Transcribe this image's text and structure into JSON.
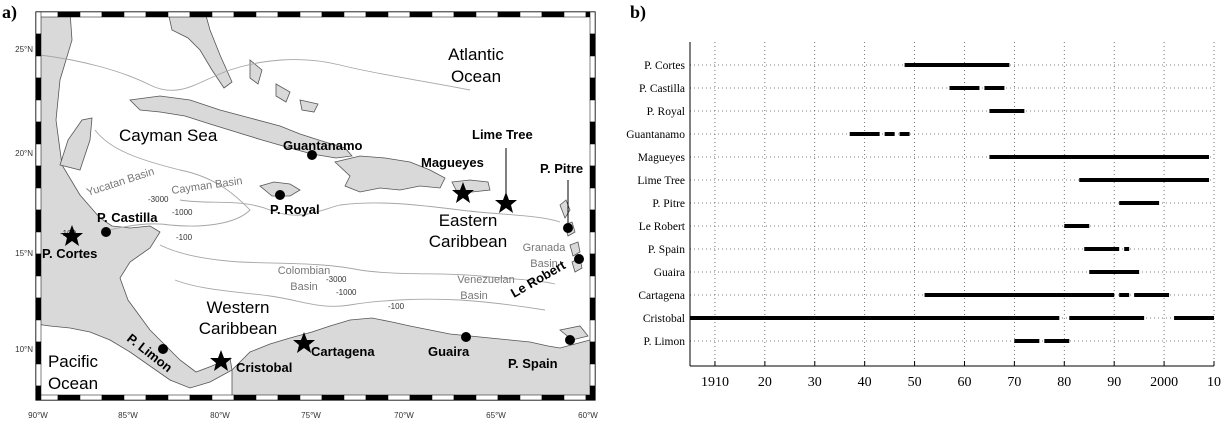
{
  "panels": {
    "a": "a)",
    "b": "b)"
  },
  "map": {
    "oceans": {
      "atlantic_1": "Atlantic",
      "atlantic_2": "Ocean",
      "pacific_1": "Pacific",
      "pacific_2": "Ocean"
    },
    "regions": {
      "cayman_sea": "Cayman Sea",
      "eastern_1": "Eastern",
      "eastern_2": "Caribbean",
      "western_1": "Western",
      "western_2": "Caribbean"
    },
    "basins": {
      "yucatan": "Yucatan Basin",
      "cayman": "Cayman Basin",
      "colombian_1": "Colombian",
      "colombian_2": "Basin",
      "venezuelan_1": "Venezuelan",
      "venezuelan_2": "Basin",
      "granada_1": "Granada",
      "granada_2": "Basin"
    },
    "contours": {
      "c3000a": "-3000",
      "c1000a": "-1000",
      "c100a": "-100",
      "c3000b": "-3000",
      "c1000b": "-1000",
      "c100b": "-100",
      "c100c": "-100"
    },
    "stations": {
      "guantanamo": "Guantanamo",
      "lime_tree": "Lime Tree",
      "magueyes": "Magueyes",
      "p_pitre": "P. Pitre",
      "p_castilla": "P. Castilla",
      "p_royal": "P. Royal",
      "p_cortes": "P. Cortes",
      "le_robert": "Le Robert",
      "p_limon": "P. Limon",
      "cristobal": "Cristobal",
      "cartagena": "Cartagena",
      "guaira": "Guaira",
      "p_spain": "P. Spain"
    },
    "lat_ticks": [
      "25°N",
      "20°N",
      "15°N",
      "10°N"
    ],
    "lon_ticks": [
      "90°W",
      "85°W",
      "80°W",
      "75°W",
      "70°W",
      "65°W",
      "60°W"
    ]
  },
  "chart_data": {
    "type": "timeline",
    "x_ticks": [
      "1910",
      "20",
      "30",
      "40",
      "50",
      "60",
      "70",
      "80",
      "90",
      "2000",
      "10"
    ],
    "xlim": [
      1905,
      2010
    ],
    "stations": [
      {
        "name": "P. Cortes",
        "segments": [
          [
            1948,
            1969
          ]
        ]
      },
      {
        "name": "P. Castilla",
        "segments": [
          [
            1957,
            1963
          ],
          [
            1964,
            1968
          ]
        ]
      },
      {
        "name": "P. Royal",
        "segments": [
          [
            1965,
            1972
          ]
        ]
      },
      {
        "name": "Guantanamo",
        "segments": [
          [
            1937,
            1943
          ],
          [
            1944,
            1946
          ],
          [
            1947,
            1949
          ]
        ]
      },
      {
        "name": "Magueyes",
        "segments": [
          [
            1965,
            2009
          ]
        ]
      },
      {
        "name": "Lime Tree",
        "segments": [
          [
            1983,
            2009
          ]
        ]
      },
      {
        "name": "P. Pitre",
        "segments": [
          [
            1991,
            1999
          ]
        ]
      },
      {
        "name": "Le Robert",
        "segments": [
          [
            1980,
            1985
          ]
        ]
      },
      {
        "name": "P. Spain",
        "segments": [
          [
            1984,
            1991
          ],
          [
            1992,
            1993
          ]
        ]
      },
      {
        "name": "Guaira",
        "segments": [
          [
            1985,
            1995
          ]
        ]
      },
      {
        "name": "Cartagena",
        "segments": [
          [
            1952,
            1990
          ],
          [
            1991,
            1993
          ],
          [
            1994,
            2001
          ]
        ]
      },
      {
        "name": "Cristobal",
        "segments": [
          [
            1905,
            1979
          ],
          [
            1981,
            1996
          ],
          [
            2002,
            2010
          ]
        ]
      },
      {
        "name": "P. Limon",
        "segments": [
          [
            1970,
            1975
          ],
          [
            1976,
            1981
          ]
        ]
      }
    ]
  }
}
